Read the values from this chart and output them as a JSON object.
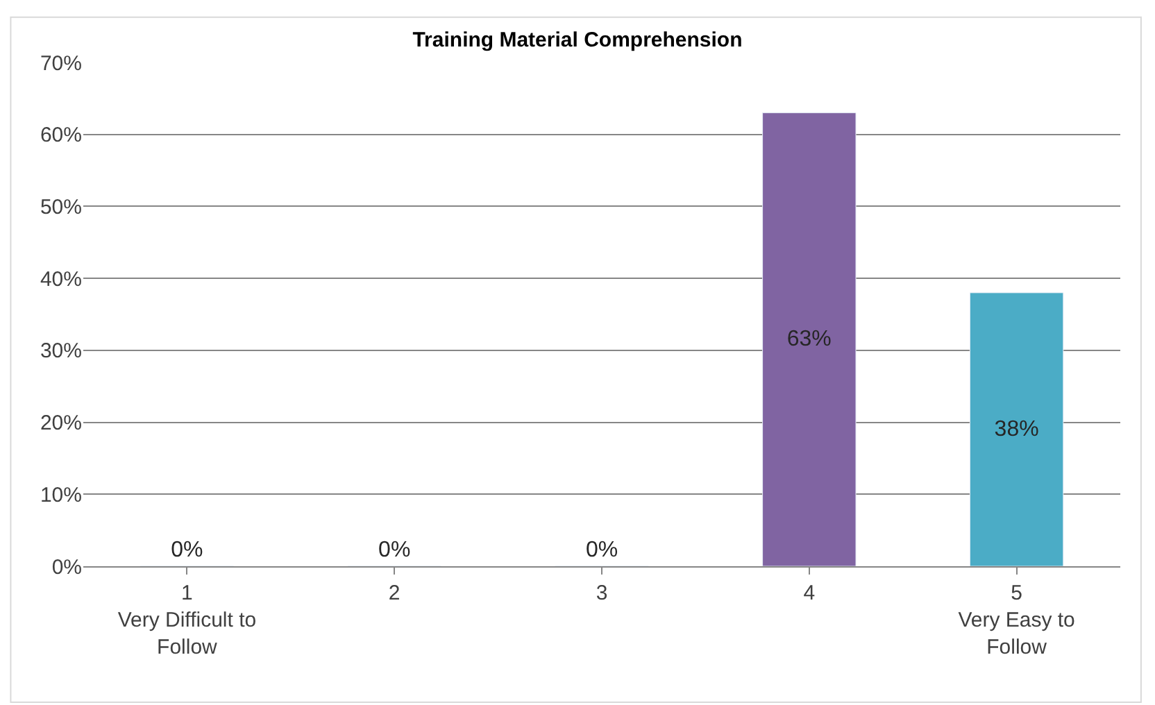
{
  "chart_data": {
    "type": "bar",
    "title": "Training Material Comprehension",
    "categories": [
      "1\nVery Difficult to\nFollow",
      "2",
      "3",
      "4",
      "5\nVery Easy to\nFollow"
    ],
    "values": [
      0,
      0,
      0,
      63,
      38
    ],
    "value_labels": [
      "0%",
      "0%",
      "0%",
      "63%",
      "38%"
    ],
    "colors": [
      null,
      null,
      null,
      "#8064a2",
      "#4bacc6"
    ],
    "ylim": [
      0,
      70
    ],
    "yticks": [
      {
        "value": 0,
        "label": "0%"
      },
      {
        "value": 10,
        "label": "10%"
      },
      {
        "value": 20,
        "label": "20%"
      },
      {
        "value": 30,
        "label": "30%"
      },
      {
        "value": 40,
        "label": "40%"
      },
      {
        "value": 50,
        "label": "50%"
      },
      {
        "value": 60,
        "label": "60%"
      },
      {
        "value": 70,
        "label": "70%"
      }
    ],
    "grid": "y"
  }
}
